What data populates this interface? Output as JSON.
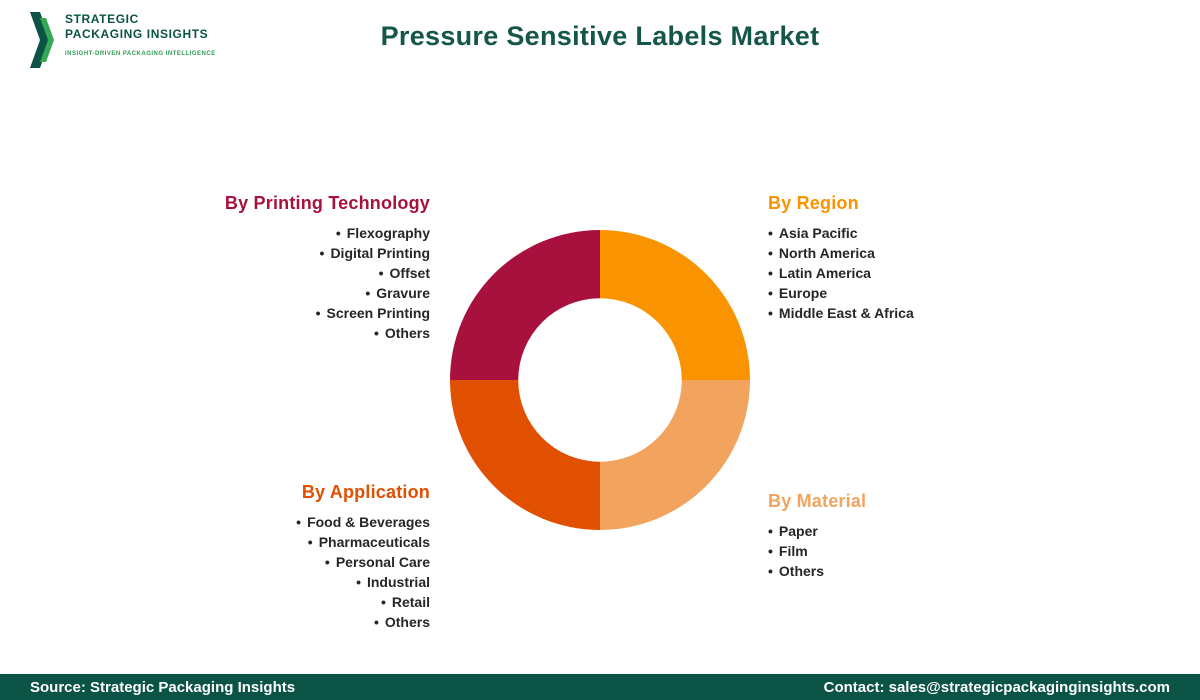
{
  "header": {
    "logo": {
      "line1": "STRATEGIC",
      "line2": "PACKAGING INSIGHTS",
      "tagline": "INSIGHT-DRIVEN PACKAGING INTELLIGENCE",
      "dark_green": "#0B5345",
      "light_green": "#35A855"
    },
    "title": "Pressure Sensitive Labels Market",
    "title_color": "#14574A"
  },
  "chart_data": {
    "type": "pie",
    "title": "Pressure Sensitive Labels Market segmentation donut",
    "donut": true,
    "inner_radius_ratio": 0.545,
    "start_at": "top",
    "direction": "clockwise",
    "segments": [
      {
        "id": "region",
        "label": "By Region",
        "value": 25,
        "color": "#F99300"
      },
      {
        "id": "material",
        "label": "By Material",
        "value": 25,
        "color": "#F2A45F"
      },
      {
        "id": "application",
        "label": "By Application",
        "value": 25,
        "color": "#E14F00"
      },
      {
        "id": "printing-technology",
        "label": "By Printing Technology",
        "value": 25,
        "color": "#A8113D"
      }
    ]
  },
  "categories": {
    "printing_technology": {
      "heading": "By Printing Technology",
      "color": "#A8113D",
      "items": [
        "Flexography",
        "Digital Printing",
        "Offset",
        "Gravure",
        "Screen Printing",
        "Others"
      ]
    },
    "region": {
      "heading": "By Region",
      "color": "#F99300",
      "items": [
        "Asia Pacific",
        "North America",
        "Latin America",
        "Europe",
        "Middle East & Africa"
      ]
    },
    "application": {
      "heading": "By Application",
      "color": "#E14F00",
      "items": [
        "Food & Beverages",
        "Pharmaceuticals",
        "Personal Care",
        "Industrial",
        "Retail",
        "Others"
      ]
    },
    "material": {
      "heading": "By Material",
      "color": "#F2A45F",
      "items": [
        "Paper",
        "Film",
        "Others"
      ]
    }
  },
  "footer": {
    "source": "Source: Strategic Packaging Insights",
    "contact": "Contact: sales@strategicpackaginginsights.com",
    "background": "#0A5345"
  }
}
